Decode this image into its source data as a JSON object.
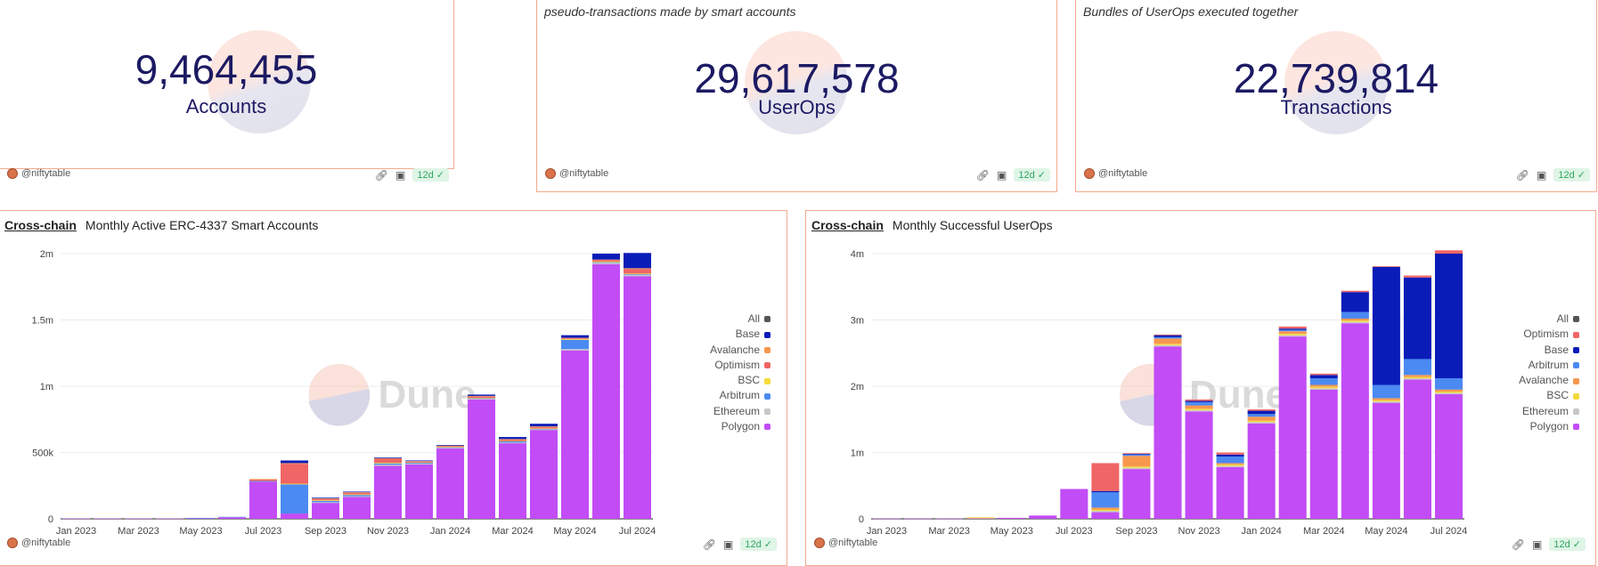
{
  "counters": [
    {
      "subtitle": "",
      "value": "9,464,455",
      "label": "Accounts",
      "author": "@niftytable",
      "age": "12d"
    },
    {
      "subtitle": "pseudo-transactions made by smart accounts",
      "value": "29,617,578",
      "label": "UserOps",
      "author": "@niftytable",
      "age": "12d"
    },
    {
      "subtitle": "Bundles of UserOps executed together",
      "value": "22,739,814",
      "label": "Transactions",
      "author": "@niftytable",
      "age": "12d"
    }
  ],
  "charts": [
    {
      "tag": "Cross-chain",
      "title": "Monthly Active ERC-4337 Smart Accounts",
      "author": "@niftytable",
      "age": "12d"
    },
    {
      "tag": "Cross-chain",
      "title": "Monthly Successful UserOps",
      "author": "@niftytable",
      "age": "12d"
    }
  ],
  "watermark": "Dune",
  "colors": {
    "Base": "#0a1cb8",
    "Avalanche": "#f7974e",
    "Optimism": "#f06565",
    "BSC": "#f5d93b",
    "Arbitrum": "#4b8af2",
    "Ethereum": "#c7c7c7",
    "Polygon": "#c24cf6",
    "All": "#555555"
  },
  "chart_data": [
    {
      "type": "bar",
      "stacked": true,
      "categories": [
        "Jan 2023",
        "Feb 2023",
        "Mar 2023",
        "Apr 2023",
        "May 2023",
        "Jun 2023",
        "Jul 2023",
        "Aug 2023",
        "Sep 2023",
        "Oct 2023",
        "Nov 2023",
        "Dec 2023",
        "Jan 2024",
        "Feb 2024",
        "Mar 2024",
        "Apr 2024",
        "May 2024",
        "Jun 2024",
        "Jul 2024"
      ],
      "x_tick_labels": [
        "Jan 2023",
        "Mar 2023",
        "May 2023",
        "Jul 2023",
        "Sep 2023",
        "Nov 2023",
        "Jan 2024",
        "Mar 2024",
        "May 2024",
        "Jul 2024"
      ],
      "y_ticks": [
        "0",
        "500k",
        "1m",
        "1.5m",
        "2m"
      ],
      "ylim": [
        0,
        2000000
      ],
      "legend": [
        "All",
        "Base",
        "Avalanche",
        "Optimism",
        "BSC",
        "Arbitrum",
        "Ethereum",
        "Polygon"
      ],
      "legend_position": "right",
      "grid": true,
      "series": [
        {
          "name": "Polygon",
          "values": [
            3000,
            3000,
            3000,
            3000,
            5000,
            12000,
            280000,
            40000,
            120000,
            165000,
            400000,
            410000,
            530000,
            900000,
            570000,
            670000,
            1270000,
            1920000,
            1830000
          ]
        },
        {
          "name": "Ethereum",
          "values": [
            0,
            0,
            0,
            0,
            0,
            0,
            0,
            0,
            5000,
            5000,
            8000,
            5000,
            5000,
            5000,
            5000,
            5000,
            10000,
            10000,
            10000
          ]
        },
        {
          "name": "Arbitrum",
          "values": [
            0,
            0,
            0,
            0,
            2000,
            3000,
            5000,
            220000,
            10000,
            10000,
            10000,
            8000,
            5000,
            5000,
            10000,
            5000,
            70000,
            5000,
            5000
          ]
        },
        {
          "name": "BSC",
          "values": [
            0,
            0,
            0,
            0,
            0,
            0,
            0,
            5000,
            5000,
            5000,
            5000,
            2000,
            2000,
            2000,
            2000,
            2000,
            5000,
            5000,
            5000
          ]
        },
        {
          "name": "Optimism",
          "values": [
            0,
            0,
            0,
            0,
            0,
            0,
            10000,
            150000,
            10000,
            10000,
            30000,
            5000,
            5000,
            10000,
            10000,
            10000,
            5000,
            10000,
            35000
          ]
        },
        {
          "name": "Avalanche",
          "values": [
            0,
            0,
            0,
            0,
            0,
            0,
            5000,
            5000,
            5000,
            5000,
            5000,
            5000,
            5000,
            5000,
            5000,
            5000,
            5000,
            5000,
            5000
          ]
        },
        {
          "name": "Base",
          "values": [
            0,
            0,
            0,
            0,
            0,
            0,
            0,
            20000,
            5000,
            5000,
            5000,
            5000,
            5000,
            10000,
            15000,
            20000,
            20000,
            45000,
            115000
          ]
        }
      ]
    },
    {
      "type": "bar",
      "stacked": true,
      "categories": [
        "Jan 2023",
        "Feb 2023",
        "Mar 2023",
        "Apr 2023",
        "May 2023",
        "Jun 2023",
        "Jul 2023",
        "Aug 2023",
        "Sep 2023",
        "Oct 2023",
        "Nov 2023",
        "Dec 2023",
        "Jan 2024",
        "Feb 2024",
        "Mar 2024",
        "Apr 2024",
        "May 2024",
        "Jun 2024",
        "Jul 2024"
      ],
      "x_tick_labels": [
        "Jan 2023",
        "Mar 2023",
        "May 2023",
        "Jul 2023",
        "Sep 2023",
        "Nov 2023",
        "Jan 2024",
        "Mar 2024",
        "May 2024",
        "Jul 2024"
      ],
      "y_ticks": [
        "0",
        "1m",
        "2m",
        "3m",
        "4m"
      ],
      "ylim": [
        0,
        4000000
      ],
      "legend": [
        "All",
        "Optimism",
        "Base",
        "Arbitrum",
        "Avalanche",
        "BSC",
        "Ethereum",
        "Polygon"
      ],
      "legend_position": "right",
      "grid": true,
      "series": [
        {
          "name": "Polygon",
          "values": [
            5000,
            5000,
            5000,
            8000,
            15000,
            50000,
            450000,
            100000,
            750000,
            2600000,
            1620000,
            780000,
            1440000,
            2750000,
            1950000,
            2950000,
            1750000,
            2100000,
            1880000
          ]
        },
        {
          "name": "Ethereum",
          "values": [
            0,
            0,
            0,
            0,
            0,
            0,
            0,
            20000,
            20000,
            20000,
            20000,
            20000,
            20000,
            20000,
            20000,
            20000,
            20000,
            20000,
            20000
          ]
        },
        {
          "name": "BSC",
          "values": [
            0,
            0,
            0,
            15000,
            0,
            0,
            0,
            20000,
            20000,
            20000,
            20000,
            20000,
            20000,
            20000,
            20000,
            20000,
            20000,
            20000,
            20000
          ]
        },
        {
          "name": "Avalanche",
          "values": [
            0,
            0,
            0,
            0,
            0,
            0,
            0,
            30000,
            160000,
            80000,
            50000,
            20000,
            60000,
            40000,
            30000,
            30000,
            30000,
            30000,
            30000
          ]
        },
        {
          "name": "Arbitrum",
          "values": [
            0,
            0,
            0,
            0,
            0,
            0,
            0,
            230000,
            20000,
            20000,
            50000,
            100000,
            40000,
            20000,
            100000,
            100000,
            200000,
            240000,
            170000
          ]
        },
        {
          "name": "Base",
          "values": [
            0,
            0,
            0,
            0,
            0,
            0,
            0,
            20000,
            10000,
            30000,
            20000,
            30000,
            50000,
            20000,
            50000,
            300000,
            1780000,
            1230000,
            1880000
          ]
        },
        {
          "name": "Optimism",
          "values": [
            0,
            0,
            0,
            0,
            0,
            0,
            0,
            420000,
            10000,
            10000,
            20000,
            30000,
            20000,
            30000,
            20000,
            20000,
            10000,
            30000,
            50000
          ]
        }
      ]
    }
  ]
}
